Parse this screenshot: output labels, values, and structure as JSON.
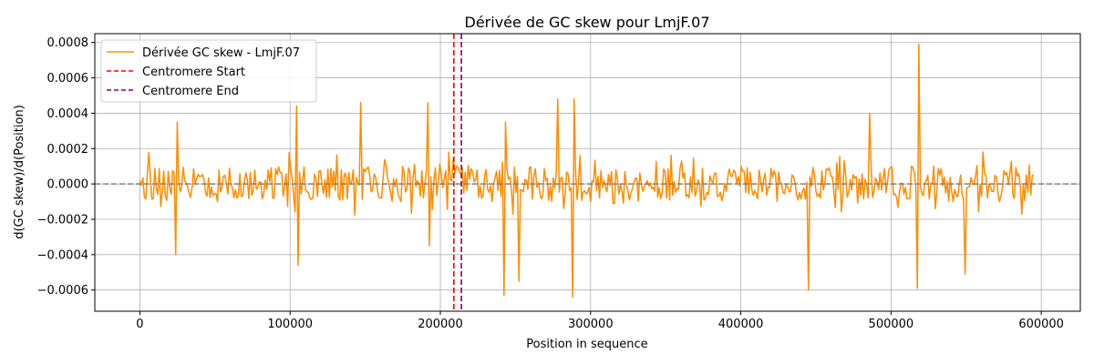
{
  "chart_data": {
    "type": "line",
    "title": "Dérivée de GC skew pour LmjF.07",
    "xlabel": "Position in sequence",
    "ylabel": "d(GC skew)/d(Position)",
    "xlim": [
      -30000,
      626000
    ],
    "ylim": [
      -0.00072,
      0.00085
    ],
    "x_ticks": [
      0,
      100000,
      200000,
      300000,
      400000,
      500000,
      600000
    ],
    "x_tick_labels": [
      "0",
      "100000",
      "200000",
      "300000",
      "400000",
      "500000",
      "600000"
    ],
    "y_ticks": [
      -0.0006,
      -0.0004,
      -0.0002,
      0.0,
      0.0002,
      0.0004,
      0.0006,
      0.0008
    ],
    "y_tick_labels": [
      "−0.0006",
      "−0.0004",
      "−0.0002",
      "0.0000",
      "0.0002",
      "0.0004",
      "0.0006",
      "0.0008"
    ],
    "grid": true,
    "legend_position": "top-left",
    "series": [
      {
        "name": "Dérivée GC skew - LmjF.07",
        "color": "#ff8c00",
        "x_start": 0,
        "x_end": 595000,
        "n_points": 600,
        "seed": 7,
        "noise_scale": 0.0001,
        "spikes": [
          {
            "x": 24000,
            "y": -0.0004
          },
          {
            "x": 25000,
            "y": 0.00035
          },
          {
            "x": 104000,
            "y": 0.00044
          },
          {
            "x": 105000,
            "y": -0.00046
          },
          {
            "x": 147000,
            "y": 0.00046
          },
          {
            "x": 192000,
            "y": 0.00046
          },
          {
            "x": 193000,
            "y": -0.00035
          },
          {
            "x": 242000,
            "y": -0.00063
          },
          {
            "x": 243000,
            "y": 0.00035
          },
          {
            "x": 252000,
            "y": -0.00055
          },
          {
            "x": 278000,
            "y": 0.00048
          },
          {
            "x": 288000,
            "y": -0.00064
          },
          {
            "x": 289000,
            "y": 0.00048
          },
          {
            "x": 445000,
            "y": -0.0006
          },
          {
            "x": 486000,
            "y": 0.0004
          },
          {
            "x": 518000,
            "y": -0.00059
          },
          {
            "x": 519000,
            "y": 0.00079
          },
          {
            "x": 549000,
            "y": -0.00051
          }
        ]
      }
    ],
    "reference_lines": [
      {
        "name": "zero-line",
        "orientation": "horizontal",
        "value": 0,
        "color": "#808080",
        "style": "dashed"
      },
      {
        "name": "Centromere Start",
        "orientation": "vertical",
        "value": 209000,
        "color": "#ff0000",
        "style": "dashed"
      },
      {
        "name": "Centromere End",
        "orientation": "vertical",
        "value": 214000,
        "color": "#800080",
        "style": "dashed"
      }
    ],
    "legend": [
      {
        "label": "Dérivée GC skew - LmjF.07",
        "color": "#ff8c00",
        "style": "solid"
      },
      {
        "label": "Centromere Start",
        "color": "#ff0000",
        "style": "dashed"
      },
      {
        "label": "Centromere End",
        "color": "#800080",
        "style": "dashed"
      }
    ]
  }
}
